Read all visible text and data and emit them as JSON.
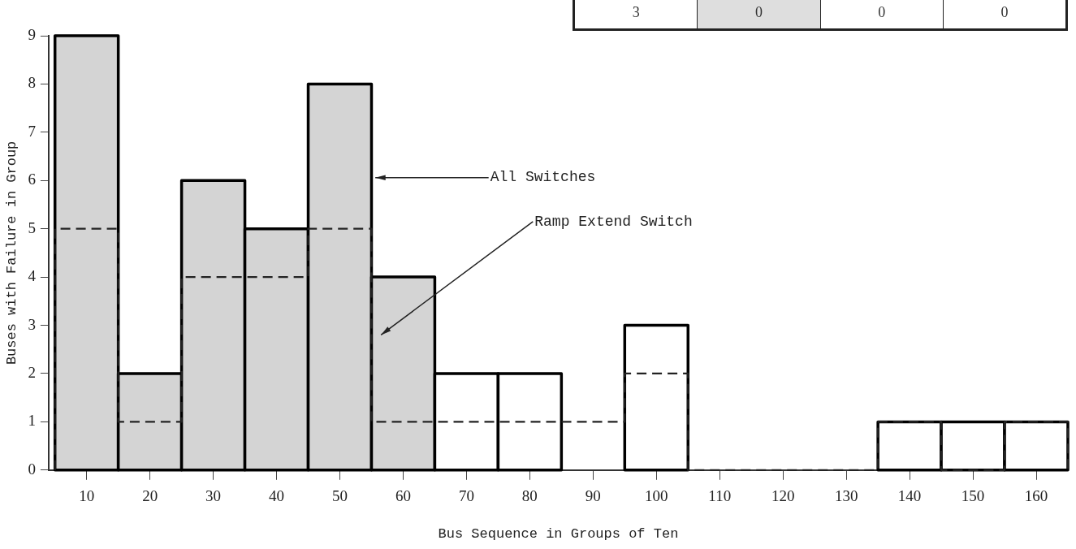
{
  "chart_data": {
    "type": "histogram",
    "xlabel": "Bus Sequence in Groups of Ten",
    "ylabel": "Buses with Failure in Group",
    "bins": [
      5,
      15,
      25,
      35,
      45,
      55,
      65,
      75,
      85,
      95,
      105,
      115,
      125,
      135,
      145,
      155,
      165
    ],
    "series": [
      {
        "name": "All Switches",
        "color": "#000000",
        "line_style": "solid",
        "colors": [
          "#d4d4d4",
          "#d4d4d4",
          "#d4d4d4",
          "#d4d4d4",
          "#d4d4d4",
          "#d4d4d4",
          "#ffffff",
          "#ffffff",
          "#ffffff",
          "#ffffff",
          "#ffffff",
          "#ffffff",
          "#ffffff",
          "#ffffff",
          "#ffffff",
          "#ffffff"
        ],
        "values": [
          9,
          2,
          6,
          5,
          8,
          4,
          2,
          2,
          0,
          3,
          0,
          0,
          0,
          1,
          1,
          1
        ]
      },
      {
        "name": "Ramp Extend Switch",
        "color": "#222222",
        "line_style": "dashed",
        "values": [
          5,
          1,
          4,
          4,
          5,
          1,
          1,
          1,
          1,
          2,
          0,
          0,
          0,
          1,
          0,
          1
        ]
      }
    ],
    "xlim": [
      4,
      165
    ],
    "xticks": [
      10,
      20,
      30,
      40,
      50,
      60,
      70,
      80,
      90,
      100,
      110,
      120,
      130,
      140,
      150,
      160
    ],
    "ylim": [
      0,
      9
    ],
    "yticks": [
      0,
      1,
      2,
      3,
      4,
      5,
      6,
      7,
      8,
      9
    ],
    "grid": false,
    "legend": false,
    "annotations": [
      "3",
      "0",
      "0",
      "0"
    ]
  }
}
